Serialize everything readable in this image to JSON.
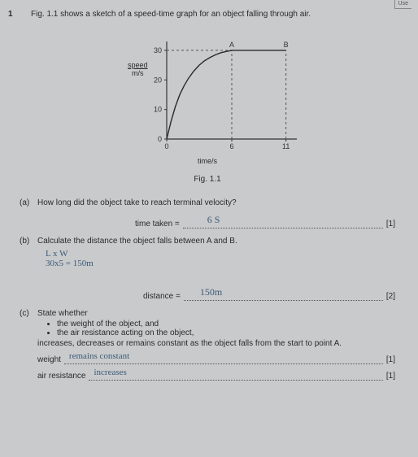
{
  "header": {
    "use_label": "Use"
  },
  "question": {
    "number": "1",
    "intro": "Fig. 1.1 shows a sketch of a speed-time graph for an object falling through air."
  },
  "chart": {
    "type": "line",
    "fig_label": "Fig. 1.1",
    "y_label_top": "speed",
    "y_label_bottom": "m/s",
    "x_label": "time/s",
    "point_A_label": "A",
    "point_B_label": "B",
    "x_ticks": [
      0,
      6,
      11
    ],
    "y_ticks": [
      0,
      10,
      20,
      30
    ],
    "xlim": [
      0,
      12
    ],
    "ylim": [
      0,
      33
    ],
    "curve_points": [
      [
        0,
        0
      ],
      [
        0.4,
        6
      ],
      [
        0.8,
        11
      ],
      [
        1.2,
        15
      ],
      [
        1.6,
        18
      ],
      [
        2,
        20.5
      ],
      [
        2.5,
        23
      ],
      [
        3,
        25
      ],
      [
        3.5,
        26.5
      ],
      [
        4,
        27.6
      ],
      [
        4.5,
        28.5
      ],
      [
        5,
        29.2
      ],
      [
        5.5,
        29.6
      ],
      [
        6,
        30
      ],
      [
        11,
        30
      ]
    ],
    "A_x": 6,
    "B_x": 11,
    "plateau_y": 30,
    "axis_color": "#333333",
    "curve_color": "#2a2a2a",
    "dash_color": "#555555",
    "background": "#c9cacb",
    "curve_width": 1.4,
    "axis_width": 1.2,
    "font_size": 9
  },
  "parts": {
    "a": {
      "label": "(a)",
      "prompt": "How long did the object take to reach terminal velocity?",
      "answer_lead": "time taken =",
      "handwritten": "6 S",
      "marks": "[1]"
    },
    "b": {
      "label": "(b)",
      "prompt": "Calculate the distance the object falls between A and B.",
      "work_line1": "L x W",
      "work_line2": "30x5 = 150m",
      "answer_lead": "distance =",
      "handwritten": "150m",
      "marks": "[2]"
    },
    "c": {
      "label": "(c)",
      "prompt": "State whether",
      "bullet1": "the weight of the object, and",
      "bullet2": "the air resistance acting on the object,",
      "tail": "increases, decreases or remains constant as the object falls from the start to point A.",
      "weight_label": "weight",
      "weight_ans": "remains   constant",
      "weight_marks": "[1]",
      "air_label": "air resistance",
      "air_ans": "increases",
      "air_marks": "[1]"
    }
  }
}
